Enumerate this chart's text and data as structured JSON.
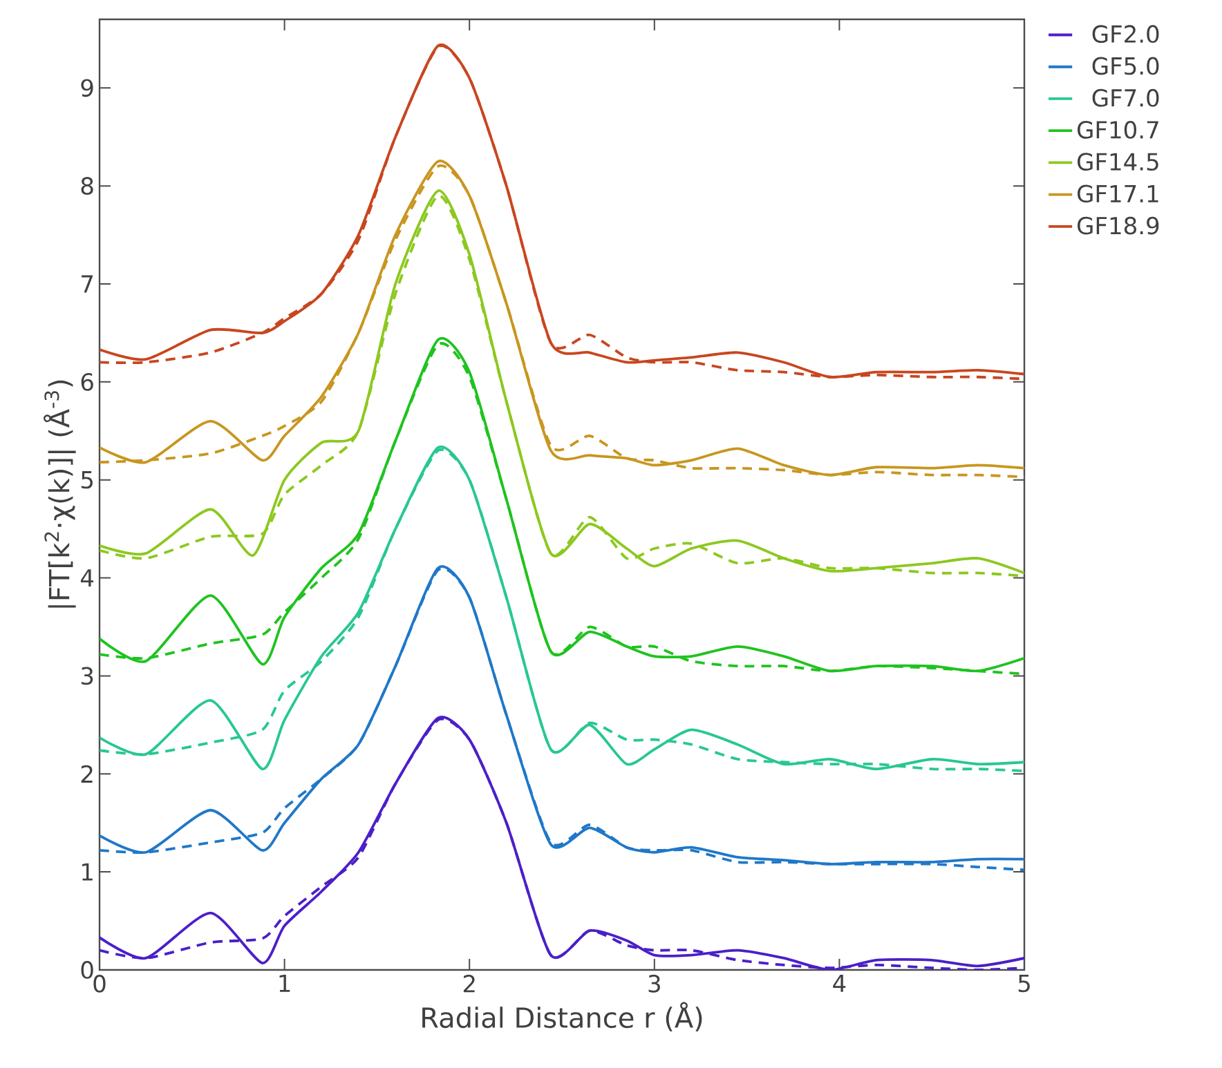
{
  "chart_data": {
    "type": "line",
    "xlabel": "Radial Distance r (Å)",
    "ylabel": "|FT[k$^{2}$·χ(k)]| (Å$^{-3}$)",
    "x": [
      0,
      0.25,
      0.6,
      0.88,
      1.0,
      1.2,
      1.4,
      1.6,
      1.83,
      2.0,
      2.2,
      2.44,
      2.65,
      2.85,
      3.0,
      3.2,
      3.45,
      3.7,
      3.95,
      4.2,
      4.5,
      4.75,
      5.0
    ],
    "xlim": [
      0,
      5
    ],
    "ylim": [
      0,
      9.7
    ],
    "xticks": [
      0,
      1,
      2,
      3,
      4,
      5
    ],
    "yticks": [
      0,
      1,
      2,
      3,
      4,
      5,
      6,
      7,
      8,
      9
    ],
    "grid": false,
    "marker": "none",
    "legend": "right",
    "series": [
      {
        "name": "GF2.0",
        "color": "#4b1fc8",
        "line_style": "solid",
        "values": [
          0.33,
          0.12,
          0.58,
          0.07,
          0.45,
          0.8,
          1.2,
          1.9,
          2.57,
          2.35,
          1.5,
          0.15,
          0.4,
          0.3,
          0.15,
          0.15,
          0.2,
          0.12,
          0.0,
          0.1,
          0.1,
          0.04,
          0.12
        ]
      },
      {
        "name": "GF5.0",
        "color": "#1f78c8",
        "line_style": "solid",
        "values": [
          1.37,
          1.2,
          1.63,
          1.22,
          1.5,
          1.95,
          2.3,
          3.1,
          4.1,
          3.8,
          2.6,
          1.28,
          1.45,
          1.25,
          1.2,
          1.25,
          1.15,
          1.12,
          1.08,
          1.1,
          1.1,
          1.13,
          1.13
        ]
      },
      {
        "name": "GF7.0",
        "color": "#28c890",
        "line_style": "solid",
        "values": [
          2.37,
          2.2,
          2.75,
          2.05,
          2.55,
          3.2,
          3.65,
          4.5,
          5.33,
          5.0,
          3.8,
          2.25,
          2.5,
          2.1,
          2.25,
          2.45,
          2.3,
          2.1,
          2.15,
          2.05,
          2.15,
          2.1,
          2.12
        ]
      },
      {
        "name": "GF10.7",
        "color": "#1fc31f",
        "line_style": "solid",
        "values": [
          3.38,
          3.15,
          3.82,
          3.12,
          3.6,
          4.1,
          4.45,
          5.4,
          6.43,
          6.1,
          4.8,
          3.25,
          3.45,
          3.3,
          3.2,
          3.2,
          3.3,
          3.2,
          3.05,
          3.1,
          3.1,
          3.05,
          3.18
        ]
      },
      {
        "name": "GF14.5",
        "color": "#8cc81f",
        "line_style": "solid",
        "x": [
          0,
          0.25,
          0.6,
          0.83,
          1.0,
          1.2,
          1.4,
          1.6,
          1.83,
          2.0,
          2.2,
          2.44,
          2.65,
          2.85,
          3.0,
          3.2,
          3.45,
          3.7,
          3.95,
          4.2,
          4.5,
          4.75,
          5.0
        ],
        "values": [
          4.33,
          4.25,
          4.7,
          4.23,
          5.0,
          5.38,
          5.5,
          7.0,
          7.95,
          7.3,
          5.8,
          4.25,
          4.55,
          4.3,
          4.12,
          4.3,
          4.38,
          4.2,
          4.07,
          4.1,
          4.15,
          4.2,
          4.05
        ]
      },
      {
        "name": "GF17.1",
        "color": "#c8961f",
        "line_style": "solid",
        "values": [
          5.33,
          5.18,
          5.6,
          5.2,
          5.45,
          5.85,
          6.5,
          7.5,
          8.25,
          7.9,
          6.8,
          5.3,
          5.25,
          5.22,
          5.15,
          5.2,
          5.32,
          5.15,
          5.05,
          5.13,
          5.12,
          5.15,
          5.12
        ]
      },
      {
        "name": "GF18.9",
        "color": "#c8461f",
        "line_style": "solid",
        "values": [
          6.33,
          6.23,
          6.53,
          6.5,
          6.62,
          6.9,
          7.5,
          8.5,
          9.43,
          9.1,
          8.0,
          6.4,
          6.3,
          6.2,
          6.22,
          6.25,
          6.3,
          6.2,
          6.05,
          6.1,
          6.1,
          6.12,
          6.08
        ]
      },
      {
        "color": "#4b1fc8",
        "line_style": "dashed",
        "values": [
          0.2,
          0.12,
          0.28,
          0.32,
          0.55,
          0.85,
          1.15,
          1.9,
          2.55,
          2.35,
          1.5,
          0.15,
          0.4,
          0.25,
          0.2,
          0.2,
          0.1,
          0.05,
          0.02,
          0.05,
          0.02,
          0.0,
          0.02
        ]
      },
      {
        "color": "#1f78c8",
        "line_style": "dashed",
        "values": [
          1.22,
          1.2,
          1.3,
          1.4,
          1.65,
          1.95,
          2.3,
          3.1,
          4.08,
          3.8,
          2.6,
          1.3,
          1.48,
          1.25,
          1.22,
          1.22,
          1.1,
          1.1,
          1.08,
          1.08,
          1.08,
          1.05,
          1.02
        ]
      },
      {
        "color": "#28c890",
        "line_style": "dashed",
        "values": [
          2.24,
          2.2,
          2.32,
          2.45,
          2.85,
          3.15,
          3.6,
          4.5,
          5.3,
          5.0,
          3.8,
          2.25,
          2.52,
          2.35,
          2.35,
          2.3,
          2.15,
          2.12,
          2.1,
          2.1,
          2.05,
          2.05,
          2.03
        ]
      },
      {
        "color": "#1fc31f",
        "line_style": "dashed",
        "values": [
          3.22,
          3.18,
          3.33,
          3.42,
          3.65,
          4.0,
          4.4,
          5.4,
          6.38,
          6.05,
          4.8,
          3.25,
          3.5,
          3.3,
          3.3,
          3.15,
          3.1,
          3.1,
          3.05,
          3.1,
          3.08,
          3.05,
          3.02
        ]
      },
      {
        "color": "#8cc81f",
        "line_style": "dashed",
        "values": [
          4.28,
          4.2,
          4.42,
          4.45,
          4.85,
          5.15,
          5.5,
          6.9,
          7.9,
          7.25,
          5.8,
          4.25,
          4.62,
          4.2,
          4.3,
          4.35,
          4.15,
          4.2,
          4.1,
          4.1,
          4.05,
          4.05,
          4.02
        ]
      },
      {
        "color": "#c8961f",
        "line_style": "dashed",
        "values": [
          5.18,
          5.2,
          5.27,
          5.45,
          5.55,
          5.8,
          6.5,
          7.45,
          8.2,
          7.9,
          6.8,
          5.35,
          5.45,
          5.22,
          5.2,
          5.12,
          5.12,
          5.1,
          5.05,
          5.08,
          5.05,
          5.05,
          5.03
        ]
      },
      {
        "color": "#c8461f",
        "line_style": "dashed",
        "values": [
          6.2,
          6.2,
          6.3,
          6.5,
          6.65,
          6.9,
          7.45,
          8.5,
          9.42,
          9.1,
          8.0,
          6.4,
          6.48,
          6.25,
          6.2,
          6.2,
          6.12,
          6.1,
          6.05,
          6.07,
          6.05,
          6.05,
          6.03
        ]
      }
    ]
  }
}
